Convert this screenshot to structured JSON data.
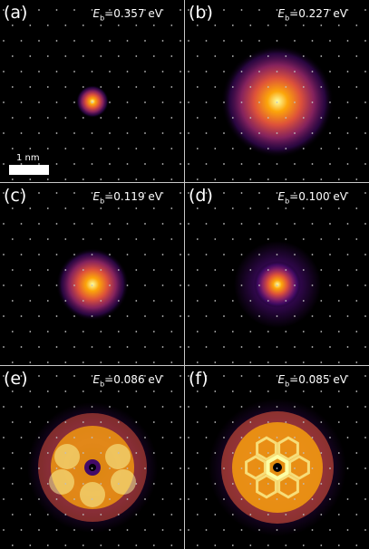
{
  "panels": [
    {
      "label": "(a)",
      "energy_symbol": "E",
      "energy_subscript": "b",
      "energy_value": "=0.357 eV",
      "shape": "small-spot"
    },
    {
      "label": "(b)",
      "energy_symbol": "E",
      "energy_subscript": "b",
      "energy_value": "=0.227 eV",
      "shape": "large-blob"
    },
    {
      "label": "(c)",
      "energy_symbol": "E",
      "energy_subscript": "b",
      "energy_value": "=0.119 eV",
      "shape": "medium-spot"
    },
    {
      "label": "(d)",
      "energy_symbol": "E",
      "energy_subscript": "b",
      "energy_value": "=0.100 eV",
      "shape": "star-spot"
    },
    {
      "label": "(e)",
      "energy_symbol": "E",
      "energy_subscript": "b",
      "energy_value": "=0.086 eV",
      "shape": "ring-lobes"
    },
    {
      "label": "(f)",
      "energy_symbol": "E",
      "energy_subscript": "b",
      "energy_value": "=0.085 eV",
      "shape": "hexagonal-ring"
    }
  ],
  "scale_bar": {
    "label": "1 nm"
  },
  "colors": {
    "background": "#000000",
    "lattice_dots": "#bfbfbf",
    "colormap": [
      "#000004",
      "#420a68",
      "#932667",
      "#dd513a",
      "#fca50a",
      "#fcffa4"
    ]
  }
}
